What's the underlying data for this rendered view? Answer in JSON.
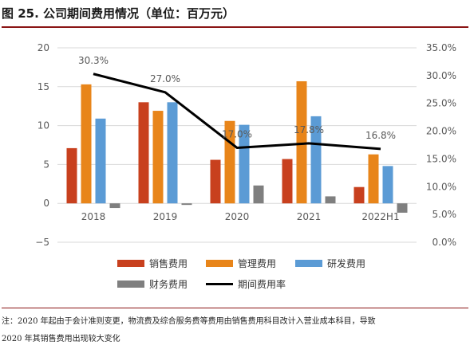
{
  "title": "图 25. 公司期间费用情况（单位：百万元）",
  "note": {
    "line1": "注：2020 年起由于会计准则变更，物流费及综合服务费等费用由销售费用科目改计入营业成本科目，导致",
    "line2": "2020 年其销售费用出现较大变化"
  },
  "chart_data": {
    "type": "bar",
    "categories": [
      "2018",
      "2019",
      "2020",
      "2021",
      "2022H1"
    ],
    "y_left": {
      "ticks": [
        "−5",
        "0",
        "5",
        "10",
        "15",
        "20"
      ],
      "ylim": [
        -5,
        20
      ]
    },
    "y_right": {
      "ticks": [
        "0.0%",
        "5.0%",
        "10.0%",
        "15.0%",
        "20.0%",
        "25.0%",
        "30.0%",
        "35.0%"
      ],
      "ylim": [
        0,
        35
      ]
    },
    "series": [
      {
        "name": "销售费用",
        "values": [
          7.1,
          13.0,
          5.6,
          5.7,
          2.1
        ],
        "color": "#c8401e"
      },
      {
        "name": "管理费用",
        "values": [
          15.3,
          11.9,
          10.6,
          15.7,
          6.3
        ],
        "color": "#e8851a"
      },
      {
        "name": "研发费用",
        "values": [
          10.9,
          13.0,
          10.1,
          11.2,
          4.8
        ],
        "color": "#5b9bd5"
      },
      {
        "name": "财务费用",
        "values": [
          -0.6,
          -0.2,
          2.3,
          0.9,
          -1.2
        ],
        "color": "#7f7f7f"
      }
    ],
    "line": {
      "name": "期间费用率",
      "values": [
        30.3,
        27.0,
        17.0,
        17.8,
        16.8
      ],
      "labels": [
        "30.3%",
        "27.0%",
        "17.0%",
        "17.8%",
        "16.8%"
      ],
      "color": "#000000"
    },
    "legend_position": "bottom"
  }
}
